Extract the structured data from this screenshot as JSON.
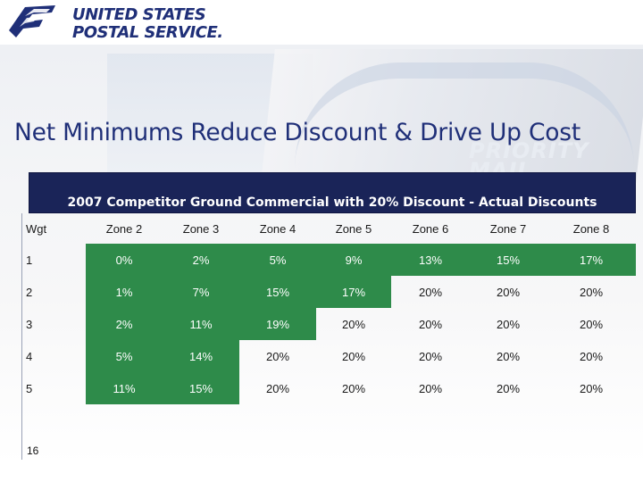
{
  "logo": {
    "line1": "UNITED STATES",
    "line2": "POSTAL SERVICE.",
    "icon": "eagle-icon"
  },
  "title": "Net Minimums Reduce Discount & Drive Up Cost",
  "table": {
    "caption": "2007 Competitor Ground Commercial with 20% Discount - Actual Discounts",
    "headers": [
      "Wgt",
      "Zone 2",
      "Zone 3",
      "Zone 4",
      "Zone 5",
      "Zone 6",
      "Zone 7",
      "Zone 8"
    ],
    "rows": [
      [
        "1",
        "0%",
        "2%",
        "5%",
        "9%",
        "13%",
        "15%",
        "17%"
      ],
      [
        "2",
        "1%",
        "7%",
        "15%",
        "17%",
        "20%",
        "20%",
        "20%"
      ],
      [
        "3",
        "2%",
        "11%",
        "19%",
        "20%",
        "20%",
        "20%",
        "20%"
      ],
      [
        "4",
        "5%",
        "14%",
        "20%",
        "20%",
        "20%",
        "20%",
        "20%"
      ],
      [
        "5",
        "11%",
        "15%",
        "20%",
        "20%",
        "20%",
        "20%",
        "20%"
      ]
    ],
    "highlight": [
      [
        false,
        true,
        true,
        true,
        true,
        true,
        true,
        true
      ],
      [
        false,
        true,
        true,
        true,
        true,
        false,
        false,
        false
      ],
      [
        false,
        true,
        true,
        true,
        false,
        false,
        false,
        false
      ],
      [
        false,
        true,
        true,
        false,
        false,
        false,
        false,
        false
      ],
      [
        false,
        true,
        true,
        false,
        false,
        false,
        false,
        false
      ]
    ]
  },
  "page_number": "16",
  "colors": {
    "highlight": "#2e8b4a",
    "header_bg": "#1a2458",
    "title": "#1f2f78"
  }
}
